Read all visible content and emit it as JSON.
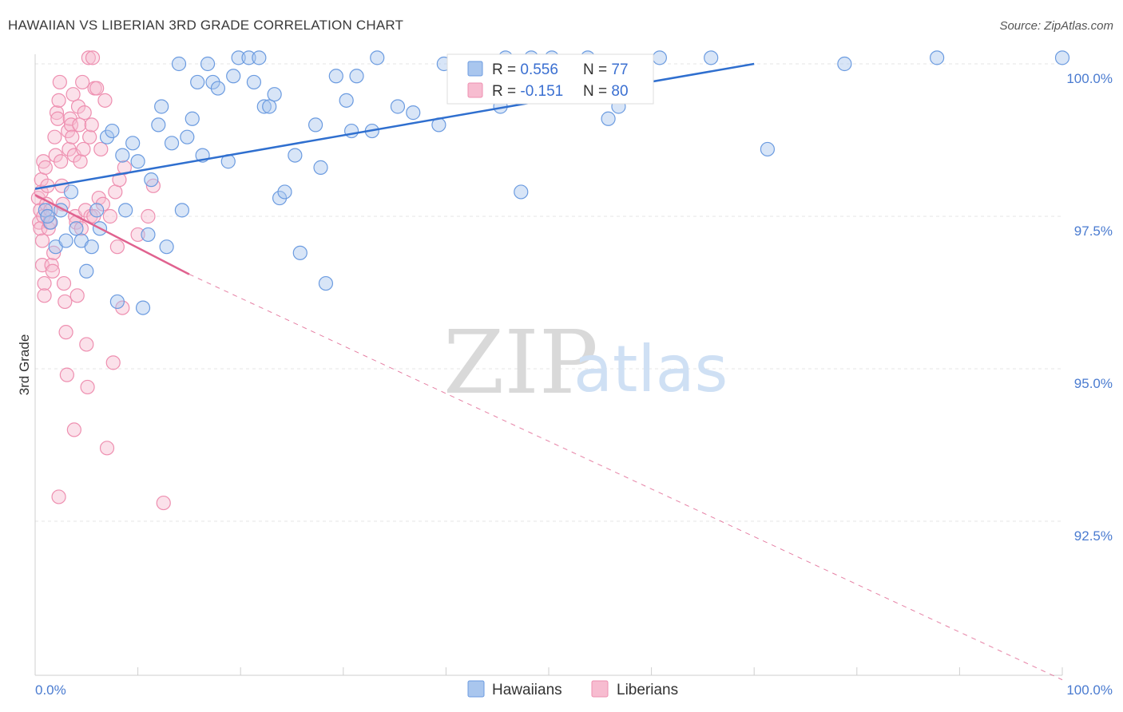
{
  "header": {
    "title": "HAWAIIAN VS LIBERIAN 3RD GRADE CORRELATION CHART",
    "source": "Source: ZipAtlas.com"
  },
  "watermark": {
    "zip": "ZIP",
    "atlas": "atlas"
  },
  "legend": {
    "r_label": "R = ",
    "n_label": "N = ",
    "hawaiians": {
      "r": "0.556",
      "n": "77"
    },
    "liberians": {
      "r": "-0.151",
      "n": "80"
    }
  },
  "bottom_legend": {
    "hawaiians": "Hawaiians",
    "liberians": "Liberians"
  },
  "colors": {
    "blue_fill": "#a9c6ee",
    "blue_stroke": "#6b9be0",
    "blue_line": "#2f6fcf",
    "pink_fill": "#f7bcd0",
    "pink_stroke": "#ee8fb0",
    "pink_line": "#e0628f",
    "tick_text": "#4a7bd0",
    "grid": "#e4e4e4"
  },
  "chart_data": {
    "type": "scatter",
    "title": "HAWAIIAN VS LIBERIAN 3RD GRADE CORRELATION CHART",
    "xlabel": "",
    "ylabel": "3rd Grade",
    "xlim": [
      0,
      100
    ],
    "ylim": [
      90.0,
      100.4
    ],
    "x_tick_labels": [
      "0.0%",
      "100.0%"
    ],
    "y_ticks": [
      {
        "value": 100.0,
        "label": "100.0%"
      },
      {
        "value": 97.5,
        "label": "97.5%"
      },
      {
        "value": 95.0,
        "label": "95.0%"
      },
      {
        "value": 92.5,
        "label": "92.5%"
      }
    ],
    "series": [
      {
        "name": "Hawaiians",
        "r": 0.556,
        "n": 77,
        "trend": {
          "x": [
            0,
            70
          ],
          "y": [
            97.95,
            100.0
          ]
        },
        "points": [
          [
            1.0,
            97.6
          ],
          [
            1.5,
            97.4
          ],
          [
            2.0,
            97.0
          ],
          [
            3.0,
            97.1
          ],
          [
            3.5,
            97.9
          ],
          [
            4.0,
            97.3
          ],
          [
            4.5,
            97.1
          ],
          [
            5.0,
            96.6
          ],
          [
            5.5,
            97.0
          ],
          [
            6.0,
            97.6
          ],
          [
            6.3,
            97.3
          ],
          [
            7.0,
            98.8
          ],
          [
            7.5,
            98.9
          ],
          [
            8.0,
            96.1
          ],
          [
            8.5,
            98.5
          ],
          [
            8.8,
            97.6
          ],
          [
            9.5,
            98.7
          ],
          [
            10.0,
            98.4
          ],
          [
            10.5,
            96.0
          ],
          [
            11.0,
            97.2
          ],
          [
            11.3,
            98.1
          ],
          [
            12.0,
            99.0
          ],
          [
            12.3,
            99.3
          ],
          [
            12.8,
            97.0
          ],
          [
            13.3,
            98.7
          ],
          [
            14.0,
            100.0
          ],
          [
            14.3,
            97.6
          ],
          [
            14.8,
            98.8
          ],
          [
            15.3,
            99.1
          ],
          [
            15.8,
            99.7
          ],
          [
            16.3,
            98.5
          ],
          [
            16.8,
            100.0
          ],
          [
            17.3,
            99.7
          ],
          [
            17.8,
            99.6
          ],
          [
            18.8,
            98.4
          ],
          [
            19.3,
            99.8
          ],
          [
            19.8,
            100.1
          ],
          [
            20.8,
            100.1
          ],
          [
            21.3,
            99.7
          ],
          [
            21.8,
            100.1
          ],
          [
            22.3,
            99.3
          ],
          [
            22.8,
            99.3
          ],
          [
            23.3,
            99.5
          ],
          [
            23.8,
            97.8
          ],
          [
            24.3,
            97.9
          ],
          [
            25.3,
            98.5
          ],
          [
            25.8,
            96.9
          ],
          [
            27.3,
            99.0
          ],
          [
            27.8,
            98.3
          ],
          [
            28.3,
            96.4
          ],
          [
            29.3,
            99.8
          ],
          [
            30.3,
            99.4
          ],
          [
            30.8,
            98.9
          ],
          [
            31.3,
            99.8
          ],
          [
            32.8,
            98.9
          ],
          [
            33.3,
            100.1
          ],
          [
            35.3,
            99.3
          ],
          [
            36.8,
            99.2
          ],
          [
            39.3,
            99.0
          ],
          [
            39.8,
            100.0
          ],
          [
            44.3,
            99.7
          ],
          [
            45.3,
            99.3
          ],
          [
            45.8,
            100.1
          ],
          [
            47.3,
            97.9
          ],
          [
            48.3,
            100.1
          ],
          [
            50.3,
            100.1
          ],
          [
            53.8,
            100.1
          ],
          [
            55.8,
            99.1
          ],
          [
            56.8,
            99.3
          ],
          [
            60.8,
            100.1
          ],
          [
            65.8,
            100.1
          ],
          [
            71.3,
            98.6
          ],
          [
            78.8,
            100.0
          ],
          [
            87.8,
            100.1
          ],
          [
            100.0,
            100.1
          ],
          [
            1.2,
            97.5
          ],
          [
            2.5,
            97.6
          ]
        ]
      },
      {
        "name": "Liberians",
        "r": -0.151,
        "n": 80,
        "trend_solid": {
          "x": [
            0,
            15
          ],
          "y": [
            97.85,
            96.55
          ]
        },
        "trend_dashed": {
          "x": [
            15,
            100
          ],
          "y": [
            96.55,
            89.9
          ]
        },
        "points": [
          [
            0.3,
            97.8
          ],
          [
            0.4,
            97.4
          ],
          [
            0.5,
            97.3
          ],
          [
            0.5,
            97.6
          ],
          [
            0.6,
            98.1
          ],
          [
            0.6,
            97.9
          ],
          [
            0.7,
            97.1
          ],
          [
            0.7,
            96.7
          ],
          [
            0.8,
            98.4
          ],
          [
            0.8,
            97.5
          ],
          [
            0.9,
            96.4
          ],
          [
            0.9,
            96.2
          ],
          [
            1.0,
            98.3
          ],
          [
            1.1,
            97.7
          ],
          [
            1.2,
            98.0
          ],
          [
            1.3,
            97.3
          ],
          [
            1.4,
            97.4
          ],
          [
            1.5,
            97.6
          ],
          [
            1.6,
            96.7
          ],
          [
            1.7,
            96.6
          ],
          [
            1.8,
            96.9
          ],
          [
            1.9,
            98.8
          ],
          [
            2.0,
            98.5
          ],
          [
            2.1,
            99.2
          ],
          [
            2.2,
            99.1
          ],
          [
            2.3,
            99.4
          ],
          [
            2.4,
            99.7
          ],
          [
            2.5,
            98.4
          ],
          [
            2.6,
            98.0
          ],
          [
            2.7,
            97.7
          ],
          [
            2.8,
            96.4
          ],
          [
            2.9,
            96.1
          ],
          [
            3.0,
            95.6
          ],
          [
            3.1,
            94.9
          ],
          [
            3.2,
            98.9
          ],
          [
            3.3,
            98.6
          ],
          [
            3.4,
            99.1
          ],
          [
            3.5,
            99.0
          ],
          [
            3.6,
            98.8
          ],
          [
            3.7,
            99.5
          ],
          [
            3.8,
            98.5
          ],
          [
            3.9,
            97.5
          ],
          [
            4.0,
            97.4
          ],
          [
            4.1,
            96.2
          ],
          [
            4.2,
            99.3
          ],
          [
            4.3,
            99.0
          ],
          [
            4.4,
            98.4
          ],
          [
            4.5,
            97.3
          ],
          [
            4.6,
            99.7
          ],
          [
            4.7,
            98.6
          ],
          [
            4.8,
            99.2
          ],
          [
            4.9,
            97.6
          ],
          [
            5.0,
            95.4
          ],
          [
            5.1,
            94.7
          ],
          [
            5.2,
            100.1
          ],
          [
            5.3,
            98.8
          ],
          [
            5.4,
            97.5
          ],
          [
            5.5,
            99.0
          ],
          [
            5.6,
            100.1
          ],
          [
            5.7,
            97.5
          ],
          [
            5.8,
            99.6
          ],
          [
            6.0,
            99.6
          ],
          [
            6.2,
            97.8
          ],
          [
            6.4,
            98.6
          ],
          [
            6.6,
            97.7
          ],
          [
            6.8,
            99.4
          ],
          [
            7.0,
            93.7
          ],
          [
            7.3,
            97.5
          ],
          [
            7.6,
            95.1
          ],
          [
            7.8,
            97.9
          ],
          [
            8.0,
            97.0
          ],
          [
            8.2,
            98.1
          ],
          [
            8.5,
            96.0
          ],
          [
            8.7,
            98.3
          ],
          [
            10.0,
            97.2
          ],
          [
            11.0,
            97.5
          ],
          [
            11.5,
            98.0
          ],
          [
            12.5,
            92.8
          ],
          [
            2.3,
            92.9
          ],
          [
            3.8,
            94.0
          ]
        ]
      }
    ]
  }
}
